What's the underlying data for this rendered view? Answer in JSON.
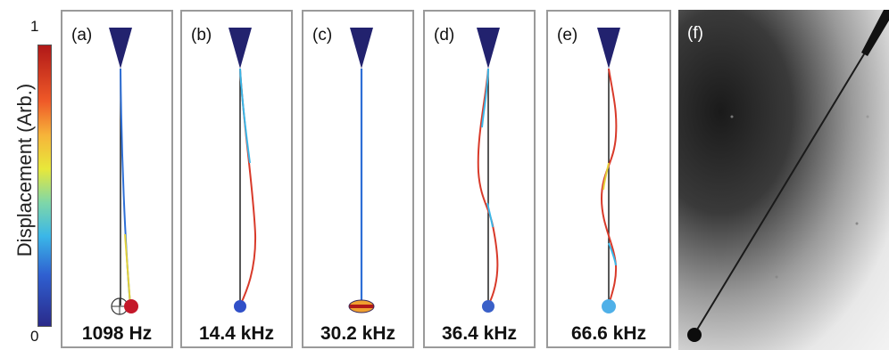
{
  "colorbar": {
    "label": "Displacement (Arb.)",
    "max_label": "1",
    "min_label": "0"
  },
  "panels": [
    {
      "label": "(a)",
      "frequency": "1098 Hz"
    },
    {
      "label": "(b)",
      "frequency": "14.4 kHz"
    },
    {
      "label": "(c)",
      "frequency": "30.2 kHz"
    },
    {
      "label": "(d)",
      "frequency": "36.4 kHz"
    },
    {
      "label": "(e)",
      "frequency": "66.6 kHz"
    }
  ],
  "photo": {
    "label": "(f)"
  },
  "colors": {
    "low": "#2a2a8a",
    "high": "#b01818",
    "frame": "#9a9a9a"
  }
}
